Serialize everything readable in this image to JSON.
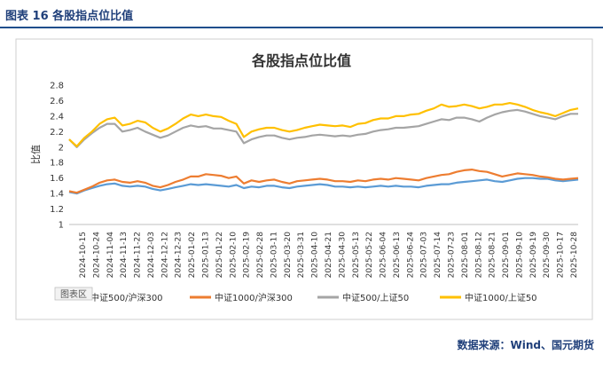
{
  "header": {
    "caption": "图表 16  各股指点位比值"
  },
  "footer": {
    "source": "数据来源：Wind、国元期货"
  },
  "legend_badge": "图表区",
  "colors": {
    "border": "#1f4e8c",
    "plot_border": "#bfbfbf",
    "grid": "#e6e6e6"
  },
  "chart_data": {
    "type": "line",
    "title": "各股指点位比值",
    "ylabel": "比值",
    "xlabel": "",
    "ylim": [
      1,
      2.8
    ],
    "yticks": [
      1,
      1.2,
      1.4,
      1.6,
      1.8,
      2,
      2.2,
      2.4,
      2.6,
      2.8
    ],
    "grid": false,
    "legend_position": "bottom",
    "x_tick_labels": [
      "2024-10-15",
      "2024-10-24",
      "2024-11-04",
      "2024-11-13",
      "2024-11-22",
      "2024-12-03",
      "2024-12-12",
      "2024-12-23",
      "2025-01-02",
      "2025-01-13",
      "2025-01-22",
      "2025-02-10",
      "2025-02-19",
      "2025-02-28",
      "2025-03-11",
      "2025-03-20",
      "2025-03-31",
      "2025-04-10",
      "2025-04-21",
      "2025-04-30",
      "2025-05-13",
      "2025-05-22",
      "2025-06-04",
      "2025-06-13",
      "2025-06-24",
      "2025-07-03",
      "2025-07-14",
      "2025-07-23",
      "2025-08-01",
      "2025-08-12",
      "2025-08-21",
      "2025-09-01",
      "2025-09-10",
      "2025-09-19",
      "2025-09-30",
      "2025-10-17",
      "2025-10-28"
    ],
    "series": [
      {
        "name": "中证500/沪深300",
        "color": "#5b9bd5",
        "values": [
          1.42,
          1.4,
          1.44,
          1.47,
          1.5,
          1.52,
          1.53,
          1.5,
          1.49,
          1.5,
          1.49,
          1.46,
          1.44,
          1.46,
          1.48,
          1.5,
          1.52,
          1.51,
          1.52,
          1.51,
          1.5,
          1.49,
          1.51,
          1.47,
          1.49,
          1.48,
          1.5,
          1.5,
          1.48,
          1.47,
          1.49,
          1.5,
          1.51,
          1.52,
          1.51,
          1.49,
          1.49,
          1.48,
          1.49,
          1.48,
          1.49,
          1.5,
          1.49,
          1.5,
          1.49,
          1.49,
          1.48,
          1.5,
          1.51,
          1.52,
          1.52,
          1.54,
          1.55,
          1.56,
          1.57,
          1.58,
          1.56,
          1.55,
          1.57,
          1.59,
          1.6,
          1.6,
          1.59,
          1.59,
          1.57,
          1.56,
          1.57,
          1.58
        ]
      },
      {
        "name": "中证1000/沪深300",
        "color": "#ed7d31",
        "values": [
          1.43,
          1.41,
          1.45,
          1.49,
          1.54,
          1.57,
          1.58,
          1.55,
          1.54,
          1.56,
          1.54,
          1.5,
          1.48,
          1.51,
          1.55,
          1.58,
          1.62,
          1.62,
          1.65,
          1.64,
          1.63,
          1.6,
          1.62,
          1.53,
          1.57,
          1.55,
          1.57,
          1.58,
          1.55,
          1.53,
          1.56,
          1.57,
          1.58,
          1.59,
          1.58,
          1.56,
          1.56,
          1.55,
          1.57,
          1.56,
          1.58,
          1.59,
          1.58,
          1.6,
          1.59,
          1.58,
          1.57,
          1.6,
          1.62,
          1.64,
          1.65,
          1.68,
          1.7,
          1.71,
          1.69,
          1.68,
          1.65,
          1.62,
          1.64,
          1.66,
          1.65,
          1.64,
          1.62,
          1.61,
          1.59,
          1.58,
          1.59,
          1.6
        ]
      },
      {
        "name": "中证500/上证50",
        "color": "#a5a5a5",
        "values": [
          2.1,
          2.0,
          2.1,
          2.18,
          2.25,
          2.3,
          2.3,
          2.2,
          2.22,
          2.25,
          2.2,
          2.16,
          2.12,
          2.15,
          2.2,
          2.25,
          2.28,
          2.26,
          2.27,
          2.24,
          2.24,
          2.22,
          2.2,
          2.05,
          2.1,
          2.13,
          2.15,
          2.15,
          2.12,
          2.1,
          2.12,
          2.13,
          2.15,
          2.16,
          2.15,
          2.14,
          2.15,
          2.14,
          2.16,
          2.17,
          2.2,
          2.22,
          2.23,
          2.25,
          2.25,
          2.26,
          2.27,
          2.3,
          2.33,
          2.36,
          2.35,
          2.38,
          2.38,
          2.36,
          2.33,
          2.38,
          2.42,
          2.45,
          2.47,
          2.48,
          2.46,
          2.43,
          2.4,
          2.38,
          2.36,
          2.4,
          2.43,
          2.43
        ]
      },
      {
        "name": "中证1000/上证50",
        "color": "#ffc000",
        "values": [
          2.1,
          2.01,
          2.12,
          2.2,
          2.3,
          2.36,
          2.38,
          2.28,
          2.3,
          2.34,
          2.32,
          2.25,
          2.2,
          2.24,
          2.3,
          2.37,
          2.42,
          2.4,
          2.42,
          2.4,
          2.39,
          2.34,
          2.3,
          2.13,
          2.2,
          2.23,
          2.25,
          2.25,
          2.22,
          2.2,
          2.22,
          2.25,
          2.27,
          2.29,
          2.28,
          2.27,
          2.28,
          2.26,
          2.3,
          2.31,
          2.35,
          2.37,
          2.37,
          2.4,
          2.4,
          2.42,
          2.43,
          2.47,
          2.5,
          2.55,
          2.52,
          2.53,
          2.55,
          2.53,
          2.5,
          2.52,
          2.55,
          2.55,
          2.57,
          2.55,
          2.52,
          2.48,
          2.45,
          2.43,
          2.4,
          2.44,
          2.48,
          2.5
        ]
      }
    ]
  }
}
